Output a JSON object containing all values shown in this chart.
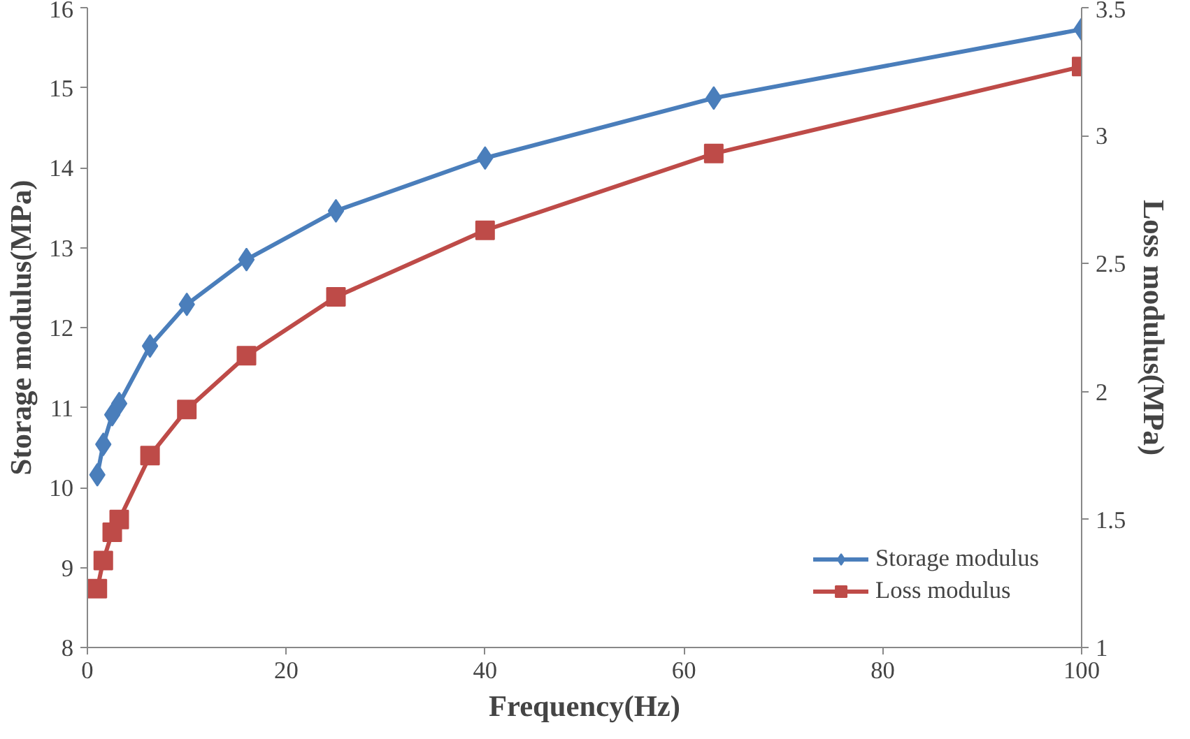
{
  "chart_data": {
    "type": "line",
    "xlabel": "Frequency(Hz)",
    "ylabel": "Storage modulus(MPa)",
    "y2label": "Loss modulus(MPa)",
    "xlim": [
      0,
      100
    ],
    "xticks": [
      0,
      20,
      40,
      60,
      80,
      100
    ],
    "ylim": [
      8,
      16
    ],
    "yticks": [
      8,
      9,
      10,
      11,
      12,
      13,
      14,
      15,
      16
    ],
    "y2lim": [
      1,
      3.5
    ],
    "y2ticks": [
      1,
      1.5,
      2,
      2.5,
      3,
      3.5
    ],
    "x": [
      1,
      1.6,
      2.5,
      3.2,
      6.3,
      10,
      16,
      25,
      40,
      63,
      100
    ],
    "series": [
      {
        "name": "Storage modulus",
        "color": "#4a7ebb",
        "marker": "diamond",
        "values": [
          10.16,
          10.54,
          10.91,
          11.05,
          11.77,
          12.29,
          12.85,
          13.46,
          14.12,
          14.87,
          15.73
        ]
      },
      {
        "name": "Loss modulus",
        "color": "#be4b48",
        "marker": "square",
        "axis": "y2",
        "values": [
          1.23,
          1.34,
          1.45,
          1.5,
          1.75,
          1.93,
          2.14,
          2.37,
          2.63,
          2.93,
          3.27
        ]
      }
    ],
    "grid": false,
    "legend": "bottom right",
    "line_style": "solid"
  }
}
